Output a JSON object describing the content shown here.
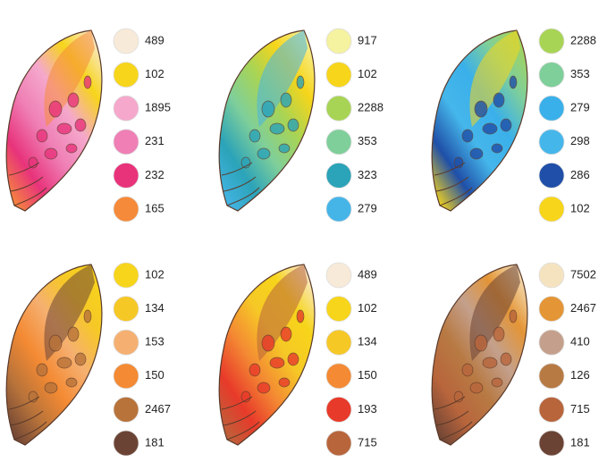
{
  "panels": [
    {
      "swatches": [
        {
          "label": "489",
          "color": "#f8ead8"
        },
        {
          "label": "102",
          "color": "#f7d51a"
        },
        {
          "label": "1895",
          "color": "#f5a8cc"
        },
        {
          "label": "231",
          "color": "#ef7fb5"
        },
        {
          "label": "232",
          "color": "#e8337b"
        },
        {
          "label": "165",
          "color": "#f58a3a"
        }
      ]
    },
    {
      "swatches": [
        {
          "label": "917",
          "color": "#f5f2a0"
        },
        {
          "label": "102",
          "color": "#f7d51a"
        },
        {
          "label": "2288",
          "color": "#a8d455"
        },
        {
          "label": "353",
          "color": "#7fcf9a"
        },
        {
          "label": "323",
          "color": "#2ba3b8"
        },
        {
          "label": "279",
          "color": "#45b5e8"
        }
      ]
    },
    {
      "swatches": [
        {
          "label": "2288",
          "color": "#a8d455"
        },
        {
          "label": "353",
          "color": "#7fcf9a"
        },
        {
          "label": "279",
          "color": "#3ab0ea"
        },
        {
          "label": "298",
          "color": "#45b6ea"
        },
        {
          "label": "286",
          "color": "#1f4fa8"
        },
        {
          "label": "102",
          "color": "#f7d51a"
        }
      ]
    },
    {
      "swatches": [
        {
          "label": "102",
          "color": "#f7d51a"
        },
        {
          "label": "134",
          "color": "#f6c826"
        },
        {
          "label": "153",
          "color": "#f5b071"
        },
        {
          "label": "150",
          "color": "#f48a33"
        },
        {
          "label": "2467",
          "color": "#b8733a"
        },
        {
          "label": "181",
          "color": "#6b4335"
        }
      ]
    },
    {
      "swatches": [
        {
          "label": "489",
          "color": "#f8ead8"
        },
        {
          "label": "102",
          "color": "#f7d51a"
        },
        {
          "label": "134",
          "color": "#f6c826"
        },
        {
          "label": "150",
          "color": "#f48a33"
        },
        {
          "label": "193",
          "color": "#e83a2a"
        },
        {
          "label": "715",
          "color": "#b8653c"
        }
      ]
    },
    {
      "swatches": [
        {
          "label": "7502",
          "color": "#f5e3c0"
        },
        {
          "label": "2467",
          "color": "#e49536"
        },
        {
          "label": "410",
          "color": "#c4a08c"
        },
        {
          "label": "126",
          "color": "#b87a43"
        },
        {
          "label": "715",
          "color": "#b8653c"
        },
        {
          "label": "181",
          "color": "#6b4335"
        }
      ]
    }
  ]
}
